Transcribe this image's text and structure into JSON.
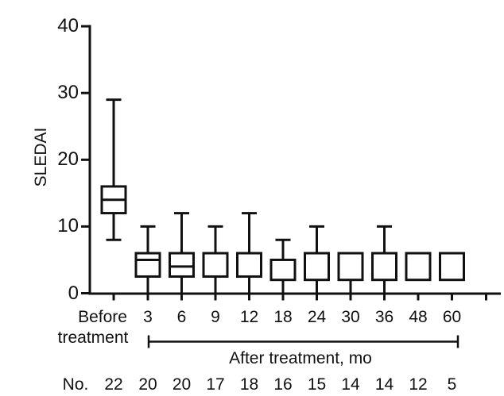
{
  "figure": {
    "ylabel": "SLEDAI",
    "before_line1": "Before",
    "before_line2": "treatment",
    "after_label": "After treatment, mo",
    "counts_label": "No."
  },
  "chart_data": {
    "type": "boxplot",
    "title": "",
    "xlabel": "After treatment, mo",
    "ylabel": "SLEDAI",
    "ylim": [
      0,
      40
    ],
    "yticks": [
      0,
      10,
      20,
      30,
      40
    ],
    "grid": false,
    "legend": false,
    "categories": [
      "Before treatment",
      "3",
      "6",
      "9",
      "12",
      "18",
      "24",
      "30",
      "36",
      "48",
      "60"
    ],
    "x_group_label": "After treatment, mo",
    "x_group_span": [
      "3",
      "60"
    ],
    "boxes": [
      {
        "label": "Before treatment",
        "whisker_low": 8,
        "q1": 12,
        "median": 14,
        "q3": 16,
        "whisker_high": 29
      },
      {
        "label": "3",
        "whisker_low": 0,
        "q1": 2.5,
        "median": 5,
        "q3": 6,
        "whisker_high": 10
      },
      {
        "label": "6",
        "whisker_low": 0,
        "q1": 2.5,
        "median": 4,
        "q3": 6,
        "whisker_high": 12
      },
      {
        "label": "9",
        "whisker_low": 0,
        "q1": 2.5,
        "median": null,
        "q3": 6,
        "whisker_high": 10
      },
      {
        "label": "12",
        "whisker_low": 0,
        "q1": 2.5,
        "median": null,
        "q3": 6,
        "whisker_high": 12
      },
      {
        "label": "18",
        "whisker_low": 0,
        "q1": 2,
        "median": null,
        "q3": 5,
        "whisker_high": 8
      },
      {
        "label": "24",
        "whisker_low": 0,
        "q1": 2,
        "median": null,
        "q3": 6,
        "whisker_high": 10
      },
      {
        "label": "30",
        "whisker_low": 0,
        "q1": 2,
        "median": null,
        "q3": 6,
        "whisker_high": null
      },
      {
        "label": "36",
        "whisker_low": 0,
        "q1": 2,
        "median": null,
        "q3": 6,
        "whisker_high": 10
      },
      {
        "label": "48",
        "whisker_low": null,
        "q1": 2,
        "median": null,
        "q3": 6,
        "whisker_high": null
      },
      {
        "label": "60",
        "whisker_low": null,
        "q1": 2,
        "median": null,
        "q3": 6,
        "whisker_high": null
      }
    ],
    "counts_row": {
      "label": "No.",
      "values": [
        22,
        20,
        20,
        17,
        18,
        16,
        15,
        14,
        14,
        12,
        5
      ]
    },
    "colors": {
      "stroke": "#111111",
      "box_fill": "#ffffff",
      "background": "#ffffff"
    }
  }
}
